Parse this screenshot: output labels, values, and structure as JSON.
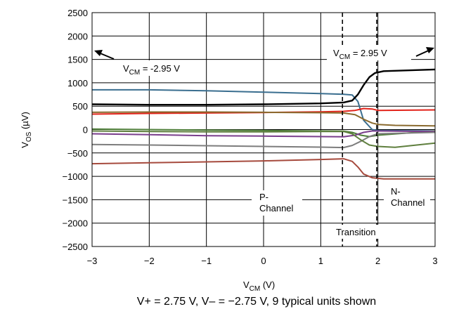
{
  "chart_data": {
    "type": "line",
    "caption": "V+ = 2.75 V, V– = −2.75 V, 9 typical units shown",
    "xlabel": {
      "main": "V",
      "sub": "CM",
      "tail": " (V)"
    },
    "ylabel": {
      "main": "V",
      "sub": "OS",
      "tail": " (µV)"
    },
    "xlim": [
      -3,
      3
    ],
    "ylim": [
      -2500,
      2500
    ],
    "x_ticks": [
      -3,
      -2,
      -1,
      0,
      1,
      2,
      3
    ],
    "x_tick_labels": [
      "−3",
      "−2",
      "−1",
      "0",
      "1",
      "2",
      "3"
    ],
    "y_ticks": [
      2500,
      2000,
      1500,
      1000,
      500,
      0,
      -500,
      -1000,
      -1500,
      -2000,
      -2500
    ],
    "y_tick_labels": [
      "2500",
      "2000",
      "1500",
      "1000",
      "500",
      "0",
      "−500",
      "−1000",
      "−1500",
      "−2000",
      "−2500"
    ],
    "grid": true,
    "annotations": {
      "vcm_low": {
        "main": "V",
        "sub": "CM",
        "tail": " = -2.95 V"
      },
      "vcm_high": {
        "main": "V",
        "sub": "CM",
        "tail": " = 2.95 V"
      },
      "p_channel_line1": "P-",
      "p_channel_line2": "Channel",
      "n_channel_line1": "N-",
      "n_channel_line2": "Channel",
      "transition": "Transition",
      "transition_bounds_x": [
        1.38,
        1.98
      ]
    },
    "series": [
      {
        "color": "#3a6e8f",
        "x": [
          -3,
          -2,
          -1,
          0,
          1,
          1.4,
          1.55,
          1.65,
          1.75,
          1.9,
          2.0,
          3
        ],
        "y": [
          850,
          850,
          830,
          800,
          770,
          755,
          740,
          600,
          200,
          0,
          -20,
          -30
        ]
      },
      {
        "color": "#000000",
        "x": [
          -3,
          -2,
          -1,
          0,
          1,
          1.4,
          1.55,
          1.65,
          1.75,
          1.85,
          1.95,
          2.1,
          3
        ],
        "y": [
          540,
          530,
          530,
          540,
          560,
          580,
          620,
          750,
          950,
          1120,
          1210,
          1250,
          1285
        ]
      },
      {
        "color": "#e2231a",
        "x": [
          -3,
          -2,
          -1,
          0,
          1,
          1.4,
          1.6,
          1.75,
          1.9,
          2.0,
          3
        ],
        "y": [
          330,
          345,
          355,
          365,
          380,
          390,
          410,
          450,
          440,
          410,
          420
        ]
      },
      {
        "color": "#8a6a2e",
        "x": [
          -3,
          -2,
          -1,
          0,
          1,
          1.4,
          1.6,
          1.75,
          1.9,
          2.0,
          2.3,
          3
        ],
        "y": [
          370,
          375,
          375,
          370,
          360,
          355,
          320,
          220,
          140,
          110,
          90,
          80
        ]
      },
      {
        "color": "#4f7f3a",
        "x": [
          -3,
          -2,
          -1,
          0,
          1,
          1.4,
          1.55,
          1.7,
          1.85,
          2.0,
          3
        ],
        "y": [
          10,
          0,
          -10,
          -20,
          -30,
          -35,
          -60,
          -120,
          -150,
          -120,
          -30
        ]
      },
      {
        "color": "#7a3e8c",
        "x": [
          -3,
          -2,
          -1,
          0,
          1,
          1.4,
          1.6,
          1.75,
          1.9,
          2.0,
          3
        ],
        "y": [
          -90,
          -110,
          -130,
          -140,
          -150,
          -155,
          -120,
          -60,
          -30,
          -30,
          -40
        ]
      },
      {
        "color": "#7d7d7d",
        "x": [
          -3,
          -2,
          -1,
          0,
          1,
          1.4,
          1.55,
          1.7,
          1.85,
          2.0,
          3
        ],
        "y": [
          -320,
          -330,
          -345,
          -360,
          -375,
          -385,
          -340,
          -250,
          -150,
          -90,
          -60
        ]
      },
      {
        "color": "#5f7f3e",
        "x": [
          -3,
          -2,
          -1,
          0,
          1,
          1.4,
          1.55,
          1.7,
          1.85,
          2.0,
          2.3,
          3
        ],
        "y": [
          -30,
          -40,
          -50,
          -50,
          -40,
          -40,
          -90,
          -220,
          -330,
          -360,
          -380,
          -290
        ]
      },
      {
        "color": "#a64a3d",
        "x": [
          -3,
          -2,
          -1,
          0,
          1,
          1.4,
          1.55,
          1.65,
          1.75,
          1.9,
          2.1,
          3
        ],
        "y": [
          -730,
          -710,
          -690,
          -670,
          -640,
          -625,
          -680,
          -800,
          -950,
          -1030,
          -1055,
          -1055
        ]
      }
    ]
  }
}
